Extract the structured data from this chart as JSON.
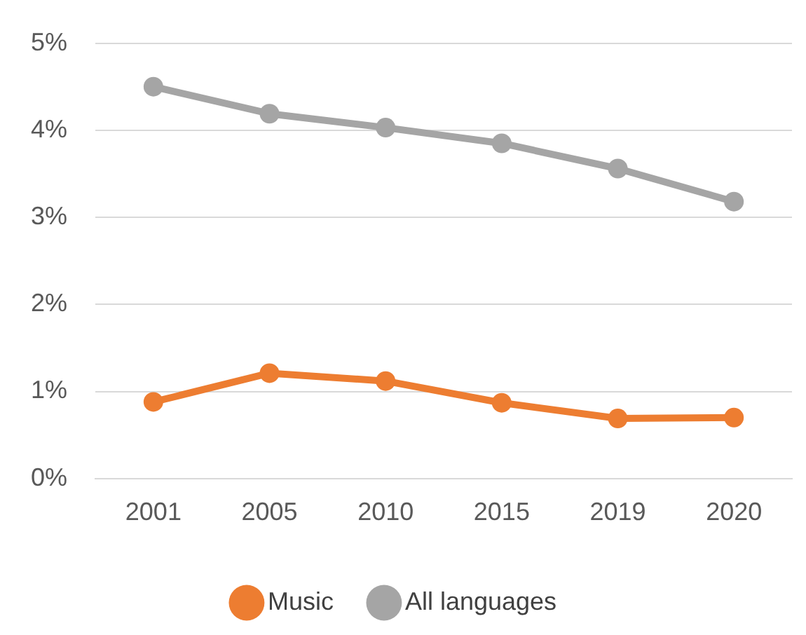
{
  "chart_data": {
    "type": "line",
    "categories": [
      "2001",
      "2005",
      "2010",
      "2015",
      "2019",
      "2020"
    ],
    "series": [
      {
        "name": "Music",
        "color": "#ed7d31",
        "values": [
          0.88,
          1.21,
          1.12,
          0.87,
          0.69,
          0.7
        ]
      },
      {
        "name": "All languages",
        "color": "#a5a5a5",
        "values": [
          4.5,
          4.19,
          4.03,
          3.85,
          3.56,
          3.18
        ]
      }
    ],
    "ylim": [
      0,
      5
    ],
    "yticks": [
      {
        "value": 0,
        "label": "0%"
      },
      {
        "value": 1,
        "label": "1%"
      },
      {
        "value": 2,
        "label": "2%"
      },
      {
        "value": 3,
        "label": "3%"
      },
      {
        "value": 4,
        "label": "4%"
      },
      {
        "value": 5,
        "label": "5%"
      }
    ],
    "grid": "y",
    "legend": "bottom",
    "marker": "circle",
    "line_style": "solid"
  }
}
